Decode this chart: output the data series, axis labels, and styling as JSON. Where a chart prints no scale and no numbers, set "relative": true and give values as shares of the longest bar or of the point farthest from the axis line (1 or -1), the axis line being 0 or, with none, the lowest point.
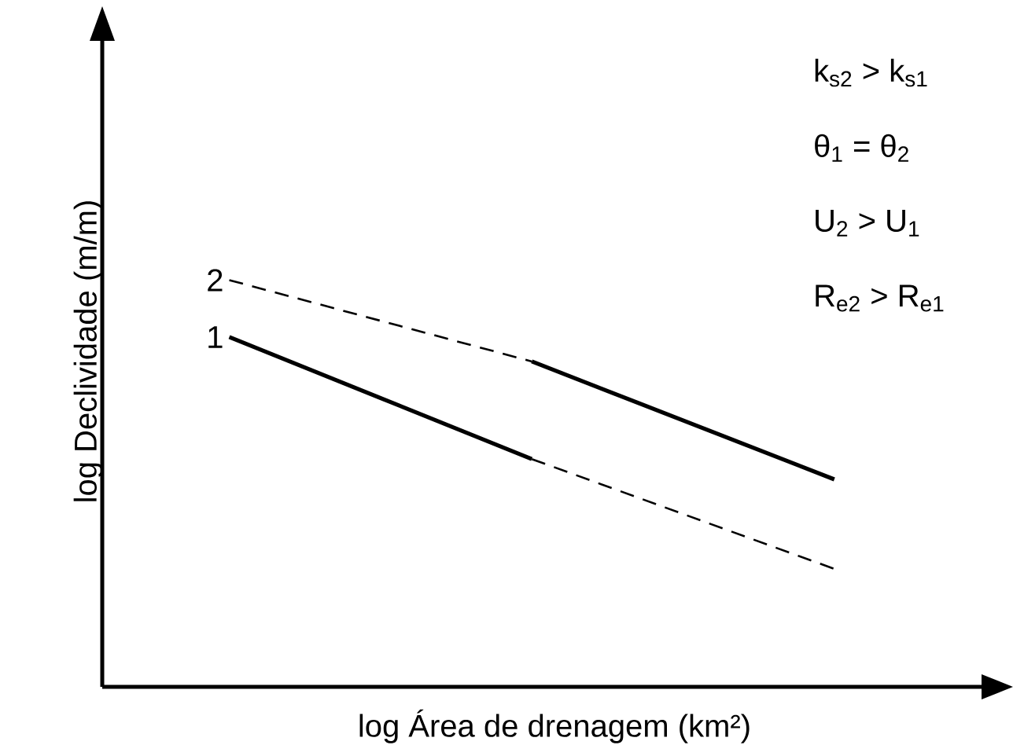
{
  "chart_data": {
    "type": "line",
    "relative": true,
    "xlabel": "log Área de drenagem (km²)",
    "ylabel": "log Declividade (m/m)",
    "categories": [
      null,
      null,
      null
    ],
    "marker": "none",
    "series": [
      {
        "name": "1",
        "color": "#000000",
        "line_style": "solid",
        "values": [
          0.86,
          0.56,
          null
        ]
      },
      {
        "color": "#000000",
        "line_style": "dashed",
        "values": [
          null,
          0.56,
          0.29
        ]
      },
      {
        "name": "2",
        "color": "#000000",
        "line_style": "dashed",
        "values": [
          1,
          0.8,
          null
        ]
      },
      {
        "color": "#000000",
        "line_style": "solid",
        "values": [
          null,
          0.8,
          0.51
        ]
      }
    ],
    "annotations": [
      "k$_{s2}$ > k$_{s1}$",
      "θ$_{1}$ = θ$_{2}$",
      "U$_{2}$ > U$_{1}$",
      "R$_{e2}$ > R$_{e1}$"
    ]
  }
}
